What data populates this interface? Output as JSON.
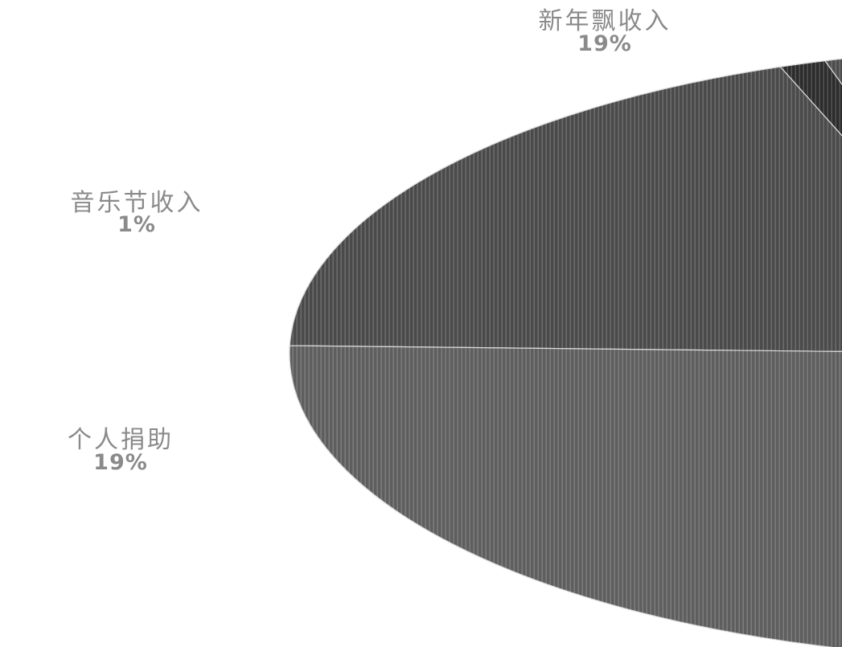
{
  "chart_data": {
    "type": "pie",
    "title": "",
    "slices": [
      {
        "label": "新年飘收入",
        "percent_label": "19%",
        "value": 19,
        "color": "#4a4a4a"
      },
      {
        "label": "音乐节收入",
        "percent_label": "1%",
        "value": 1,
        "color": "#2c2c2c"
      },
      {
        "label": "个人捐助",
        "percent_label": "19%",
        "value": 19,
        "color": "#4d4d4d"
      },
      {
        "label": "",
        "percent_label": "",
        "value": 61,
        "color": "#5e5e5e"
      }
    ],
    "legend": "none"
  }
}
